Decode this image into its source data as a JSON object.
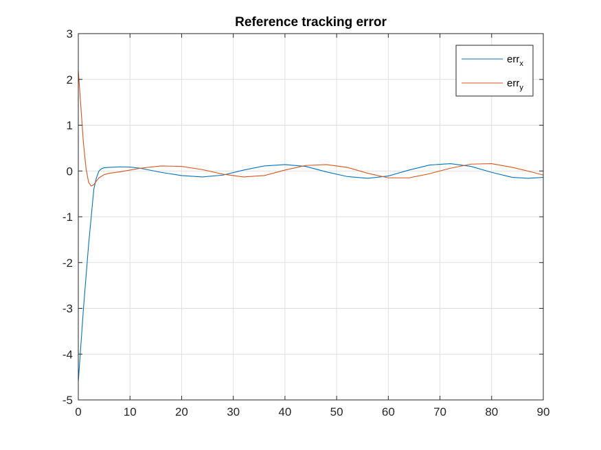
{
  "chart_data": {
    "type": "line",
    "title": "Reference tracking error",
    "xlabel": "",
    "ylabel": "",
    "xlim": [
      0,
      90
    ],
    "ylim": [
      -5,
      3
    ],
    "x_ticks": [
      0,
      10,
      20,
      30,
      40,
      50,
      60,
      70,
      80,
      90
    ],
    "y_ticks": [
      -5,
      -4,
      -3,
      -2,
      -1,
      0,
      1,
      2,
      3
    ],
    "grid": true,
    "legend_position": "top-right",
    "series": [
      {
        "name": "err",
        "name_subscript": "x",
        "color": "#0072BD",
        "x": [
          0,
          1,
          2,
          3,
          3.5,
          4,
          4.5,
          5,
          6,
          8,
          10,
          12,
          16,
          20,
          24,
          28,
          32,
          36,
          40,
          44,
          48,
          52,
          56,
          60,
          64,
          68,
          72,
          76,
          80,
          84,
          87,
          90
        ],
        "y": [
          -4.6,
          -3.0,
          -1.6,
          -0.4,
          -0.15,
          0.0,
          0.05,
          0.07,
          0.08,
          0.09,
          0.085,
          0.06,
          -0.03,
          -0.1,
          -0.13,
          -0.09,
          0.02,
          0.11,
          0.14,
          0.1,
          -0.02,
          -0.12,
          -0.16,
          -0.11,
          0.02,
          0.13,
          0.16,
          0.1,
          -0.03,
          -0.14,
          -0.16,
          -0.14
        ]
      },
      {
        "name": "err",
        "name_subscript": "y",
        "color": "#D95319",
        "x": [
          0,
          0.5,
          1,
          1.5,
          2,
          2.5,
          3,
          3.5,
          4,
          5,
          6,
          8,
          10,
          12,
          16,
          20,
          24,
          28,
          32,
          36,
          40,
          44,
          48,
          52,
          56,
          60,
          64,
          68,
          72,
          76,
          80,
          84,
          88,
          90
        ],
        "y": [
          2.2,
          1.4,
          0.6,
          0.05,
          -0.25,
          -0.33,
          -0.3,
          -0.22,
          -0.15,
          -0.08,
          -0.05,
          -0.02,
          0.02,
          0.06,
          0.11,
          0.1,
          0.03,
          -0.07,
          -0.13,
          -0.1,
          0.02,
          0.12,
          0.14,
          0.08,
          -0.05,
          -0.15,
          -0.15,
          -0.06,
          0.06,
          0.15,
          0.16,
          0.08,
          -0.03,
          -0.09
        ]
      }
    ]
  }
}
